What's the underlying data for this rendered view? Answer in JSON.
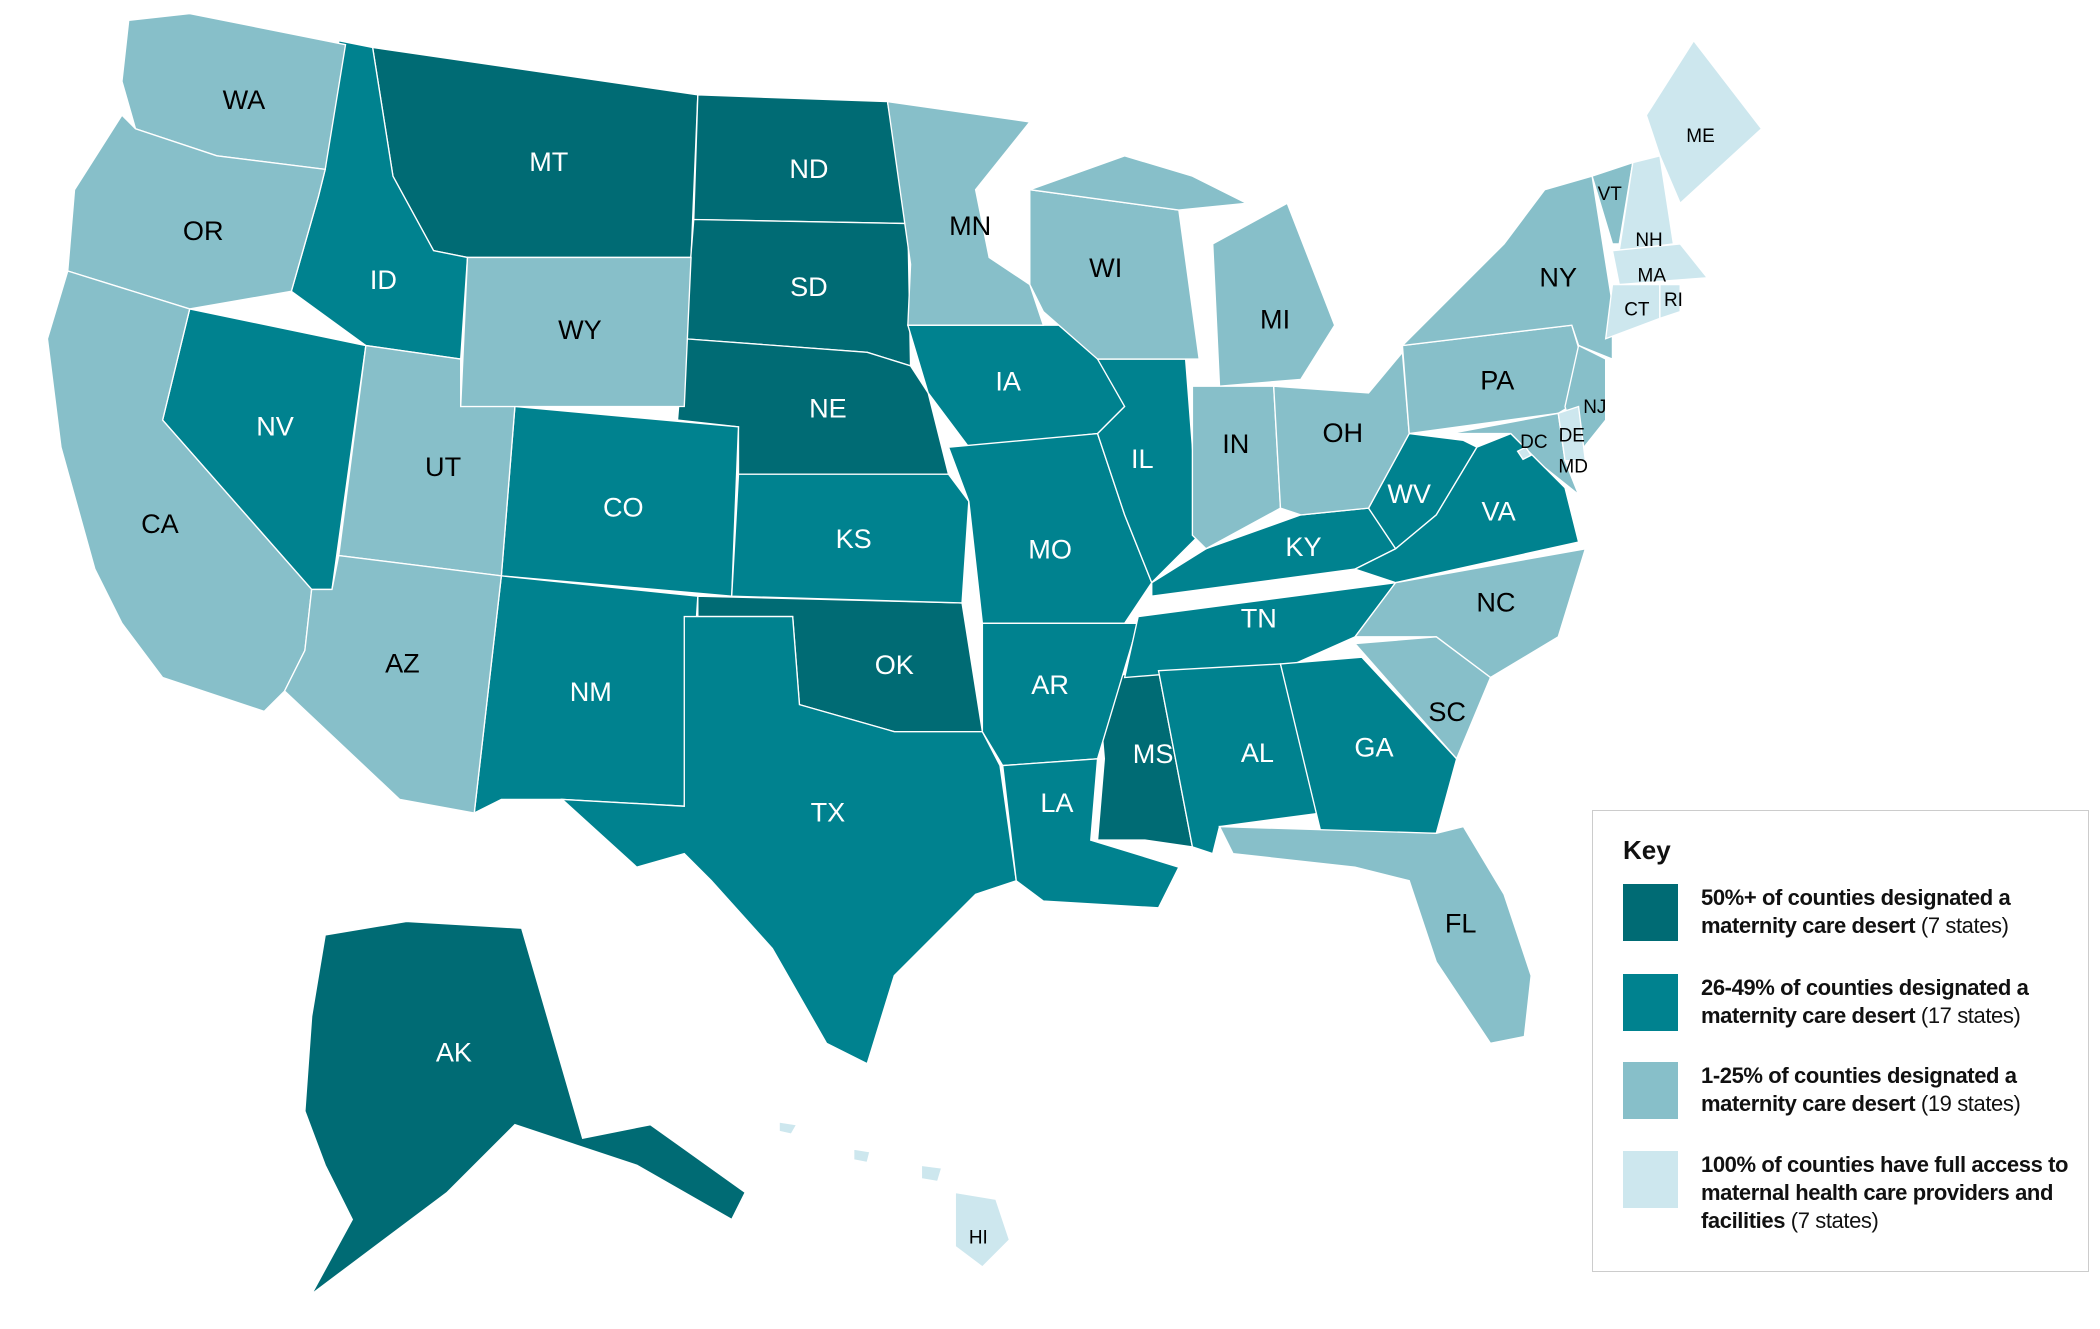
{
  "legend": {
    "title": "Key",
    "items": [
      {
        "label": "50%+ of counties designated a maternity care desert",
        "count": "(7 states)",
        "color": "#006b74",
        "states": [
          "MT",
          "ND",
          "SD",
          "NE",
          "OK",
          "MS",
          "AK"
        ]
      },
      {
        "label": "26-49% of counties designated a maternity care desert",
        "count": "(17 states)",
        "color": "#00828f",
        "states": [
          "ID",
          "NV",
          "CO",
          "NM",
          "TX",
          "KS",
          "IA",
          "MO",
          "AR",
          "LA",
          "IL",
          "KY",
          "TN",
          "AL",
          "GA",
          "WV",
          "VA"
        ]
      },
      {
        "label": "1-25% of counties designated a maternity care desert",
        "count": "(19 states)",
        "color": "#87bfc9",
        "states": [
          "WA",
          "OR",
          "CA",
          "UT",
          "AZ",
          "WY",
          "MN",
          "WI",
          "MI",
          "IN",
          "OH",
          "PA",
          "NY",
          "VT",
          "NC",
          "SC",
          "FL",
          "NJ",
          "MD"
        ]
      },
      {
        "label": "100% of counties have full access to maternal health care providers and facilities",
        "count": "(7 states)",
        "color": "#cde7ee",
        "states": [
          "ME",
          "NH",
          "MA",
          "CT",
          "RI",
          "HI",
          "DE",
          "DC"
        ]
      }
    ]
  }
}
